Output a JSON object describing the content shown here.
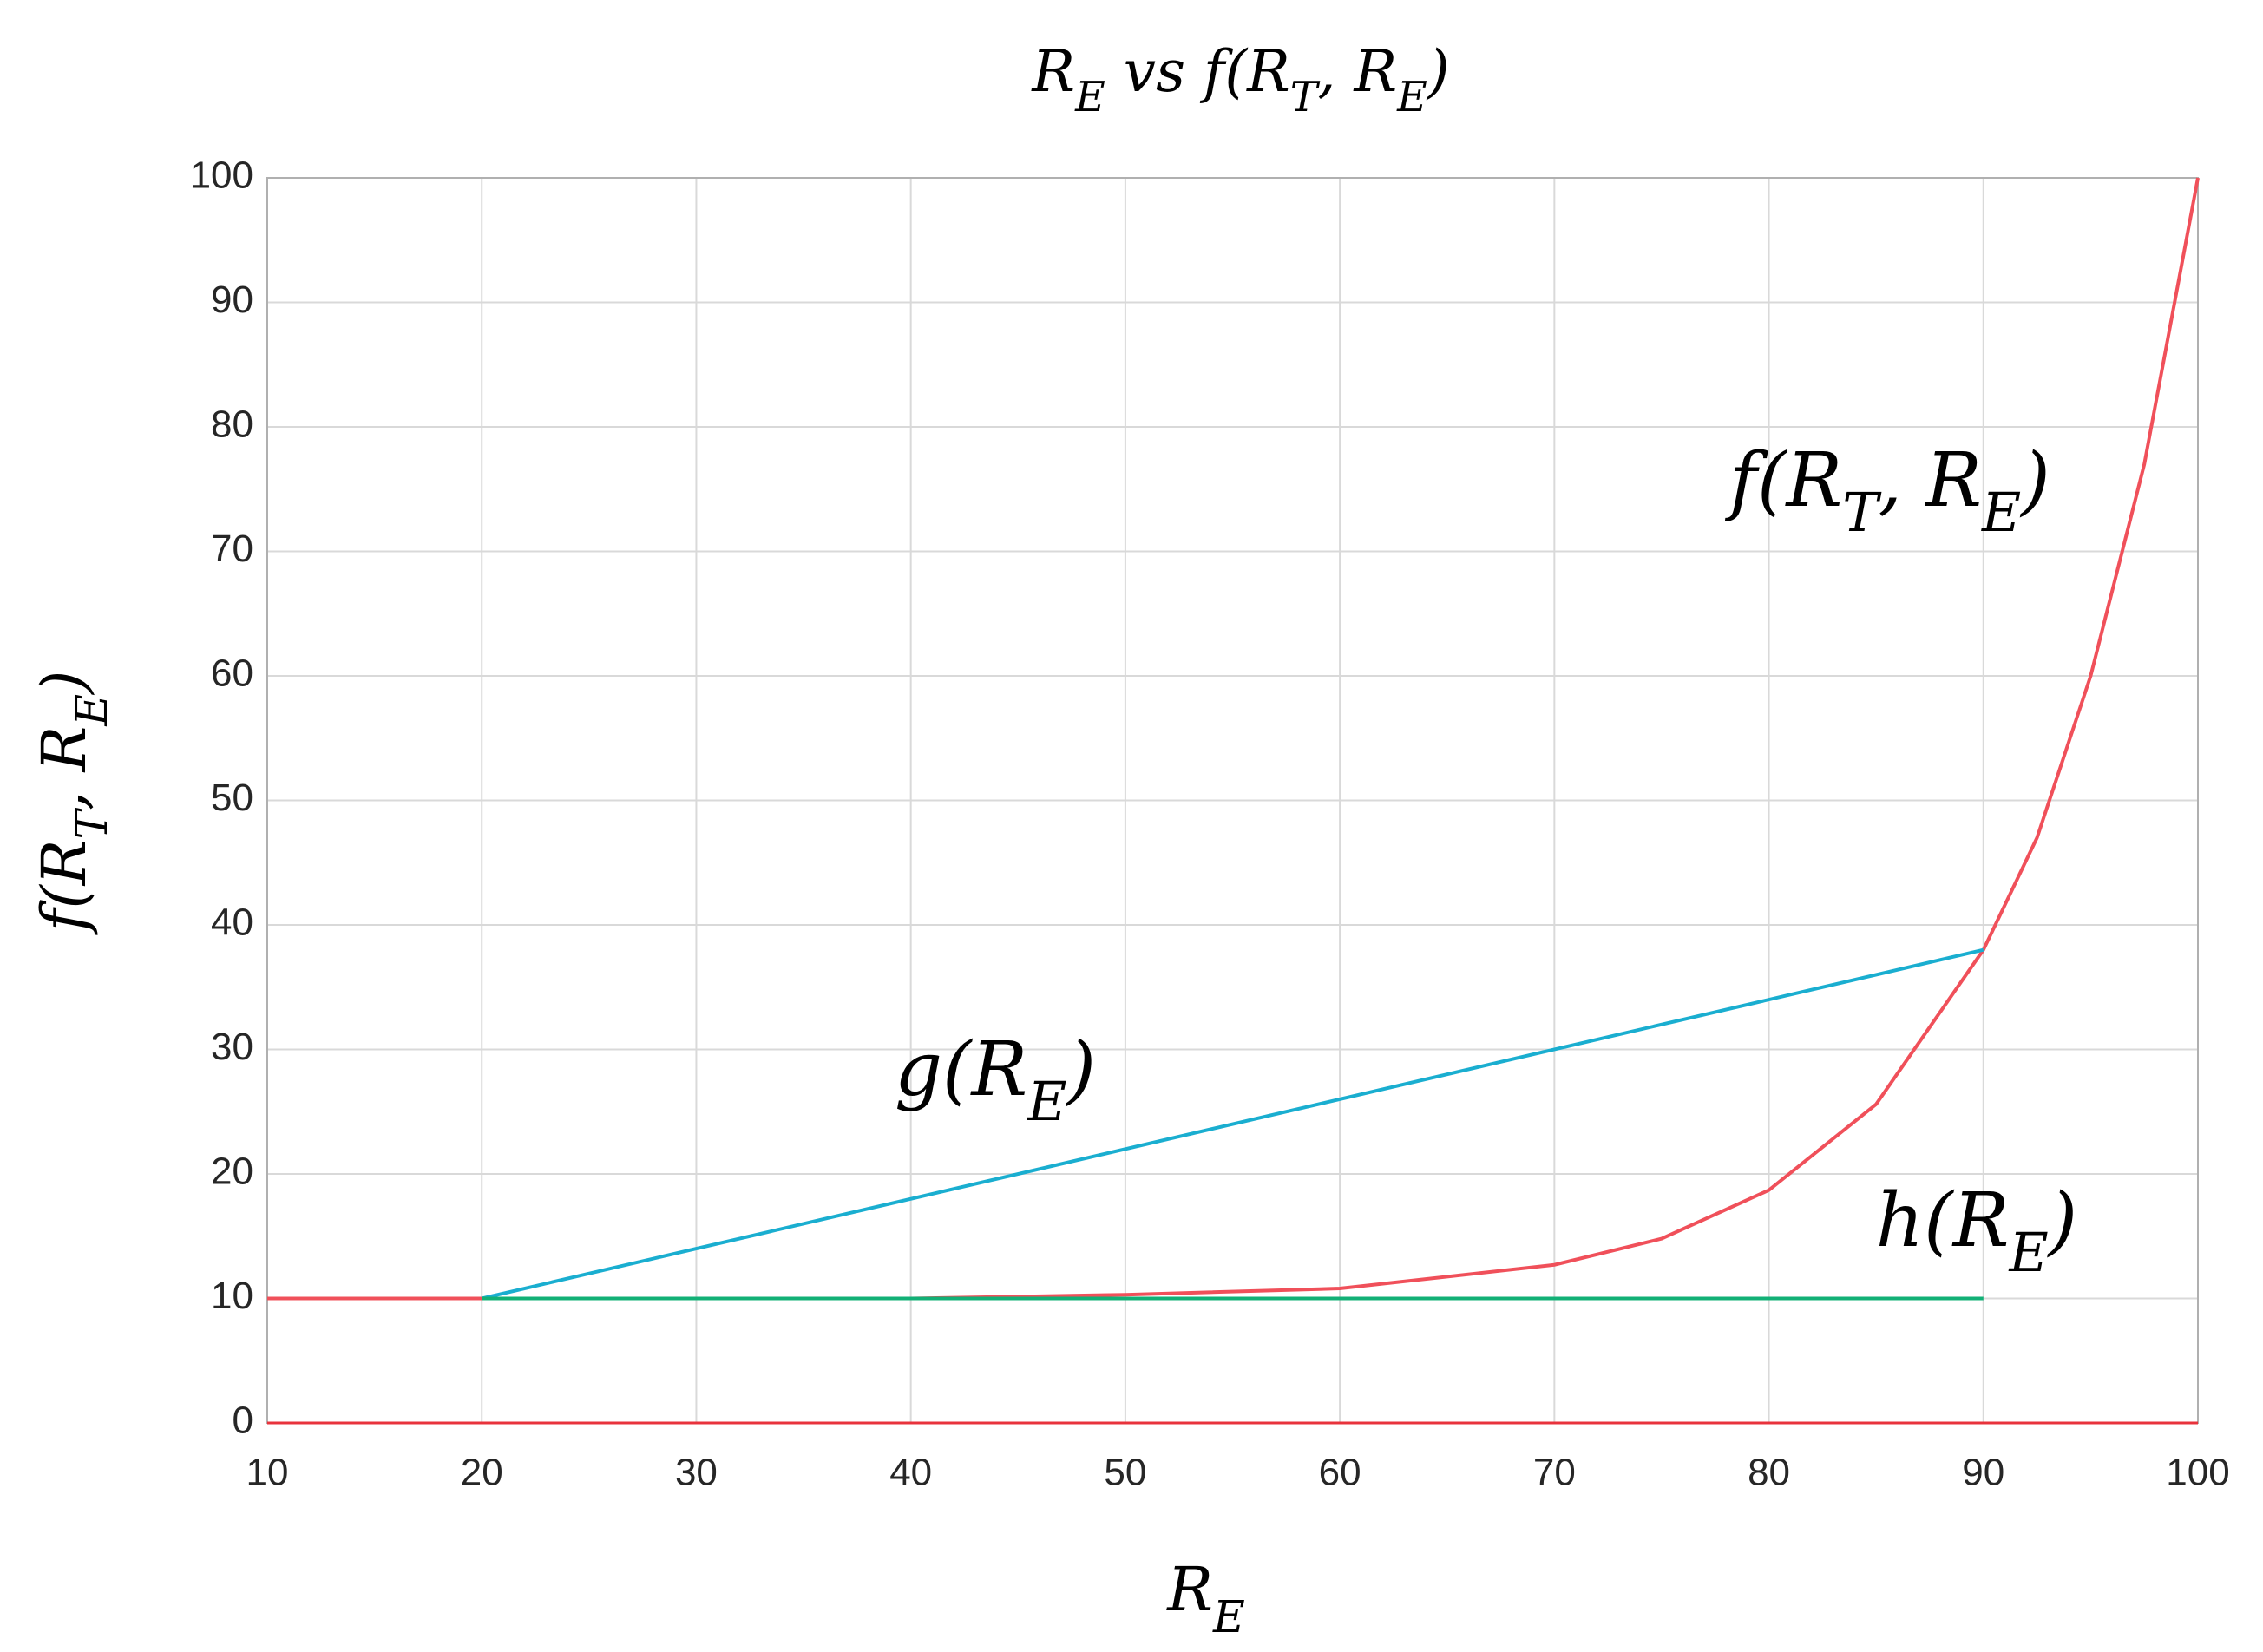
{
  "chart_data": {
    "type": "line",
    "title": "R_E vs f(R_T, R_E)",
    "x_label": "R_E",
    "y_label": "f(R_T, R_E)",
    "xlim": [
      10,
      100
    ],
    "xticks": [
      10,
      20,
      30,
      40,
      50,
      60,
      70,
      80,
      90,
      100
    ],
    "ylim": [
      0,
      100
    ],
    "yticks": [
      0,
      10,
      20,
      30,
      40,
      50,
      60,
      70,
      80,
      90,
      100
    ],
    "grid": true,
    "series": [
      {
        "name": "f(R_T, R_E)",
        "color": "#f0505a",
        "x": [
          10,
          20,
          30,
          40,
          50,
          60,
          70,
          75,
          80,
          85,
          90,
          92.5,
          95,
          97.5,
          100
        ],
        "values": [
          10,
          10,
          10,
          10,
          10.3,
          10.8,
          12.7,
          14.8,
          18.7,
          25.6,
          38,
          47,
          60,
          77,
          100
        ]
      },
      {
        "name": "g(R_E)",
        "color": "#1aaed0",
        "x": [
          20,
          90
        ],
        "values": [
          10,
          38
        ]
      },
      {
        "name": "h(R_E)",
        "color": "#12b076",
        "x": [
          20,
          90
        ],
        "values": [
          10,
          10
        ]
      }
    ]
  }
}
